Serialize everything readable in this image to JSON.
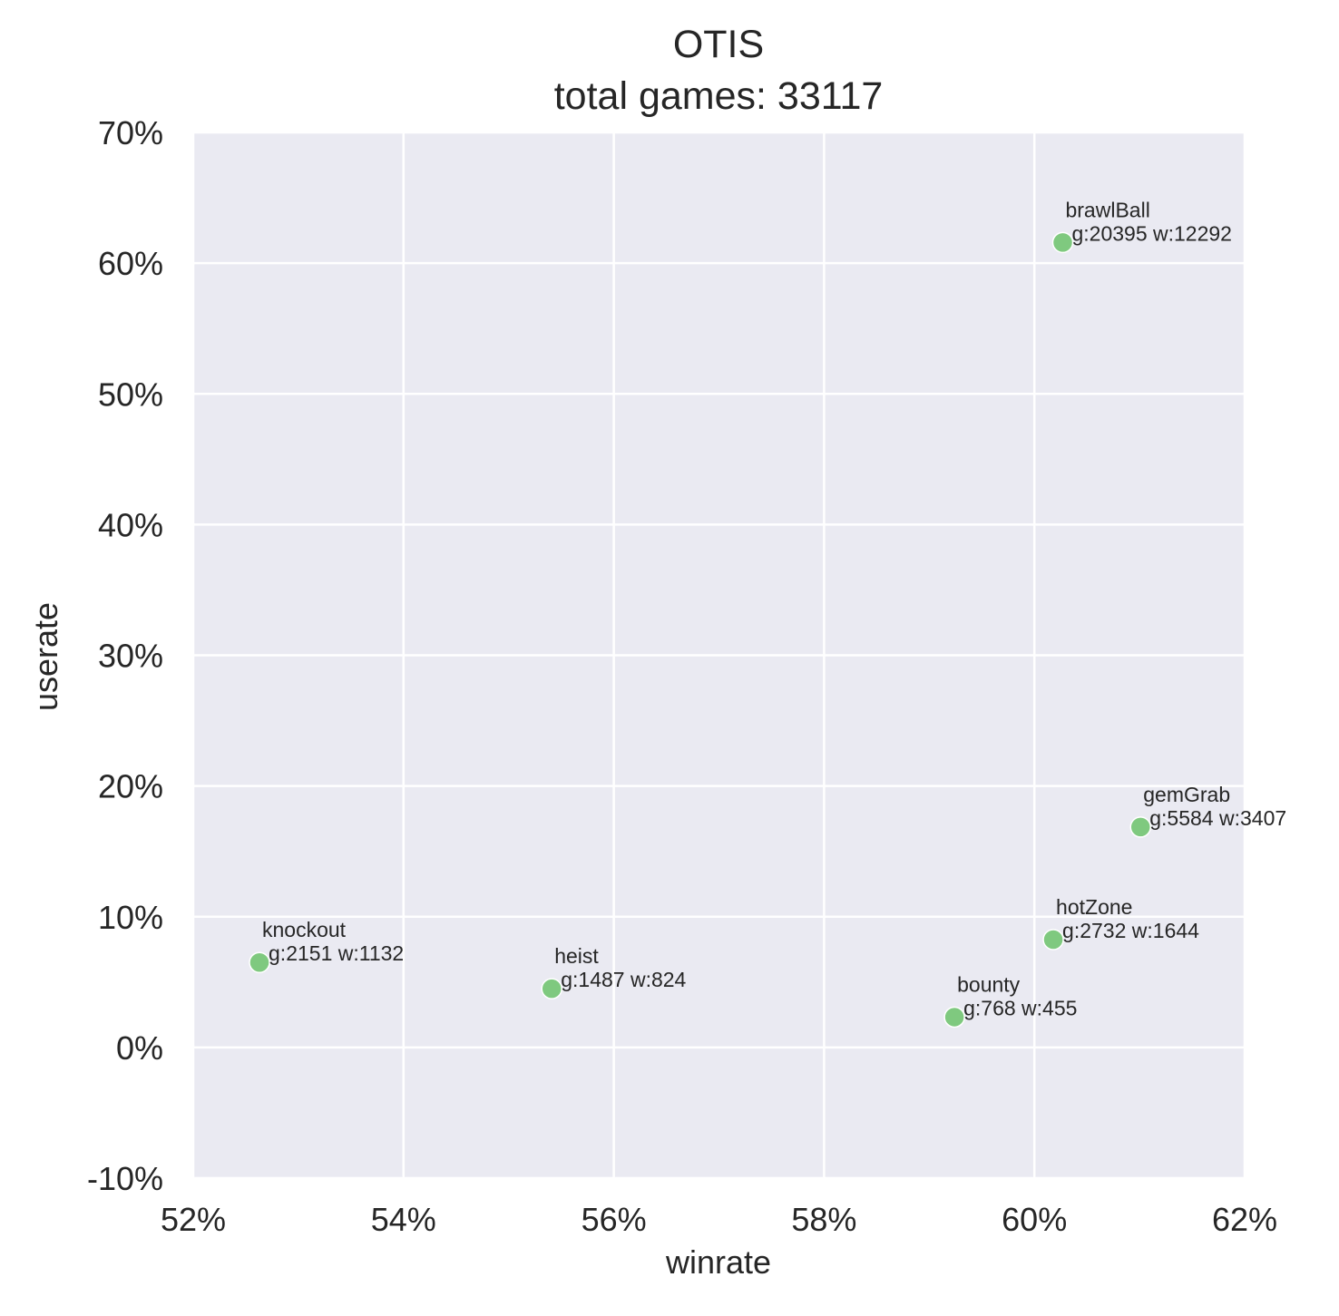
{
  "chart_data": {
    "type": "scatter",
    "title": "OTIS",
    "subtitle": "total games: 33117",
    "xlabel": "winrate",
    "ylabel": "userate",
    "xlim": [
      52,
      62
    ],
    "ylim": [
      -10,
      70
    ],
    "x_ticks": [
      52,
      54,
      56,
      58,
      60,
      62
    ],
    "y_ticks": [
      -10,
      0,
      10,
      20,
      30,
      40,
      50,
      60,
      70
    ],
    "x_tick_labels": [
      "52%",
      "54%",
      "56%",
      "58%",
      "60%",
      "62%"
    ],
    "y_tick_labels": [
      "-10%",
      "0%",
      "10%",
      "20%",
      "30%",
      "40%",
      "50%",
      "60%",
      "70%"
    ],
    "grid": true,
    "background": "#eaeaf2",
    "grid_color": "#ffffff",
    "marker_color": "#7fc97f",
    "points": [
      {
        "name": "brawlBall",
        "stats": "g:20395 w:12292",
        "x": 60.27,
        "y": 61.58
      },
      {
        "name": "gemGrab",
        "stats": "g:5584 w:3407",
        "x": 61.01,
        "y": 16.86
      },
      {
        "name": "hotZone",
        "stats": "g:2732 w:1644",
        "x": 60.18,
        "y": 8.25
      },
      {
        "name": "knockout",
        "stats": "g:2151 w:1132",
        "x": 52.63,
        "y": 6.5
      },
      {
        "name": "heist",
        "stats": "g:1487 w:824",
        "x": 55.41,
        "y": 4.49
      },
      {
        "name": "bounty",
        "stats": "g:768 w:455",
        "x": 59.24,
        "y": 2.32
      }
    ]
  }
}
